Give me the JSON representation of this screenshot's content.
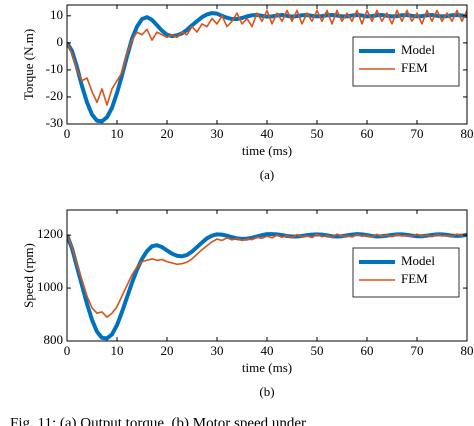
{
  "chart_data": [
    {
      "type": "line",
      "ylabel": "Torque (N.m)",
      "xlabel": "time (ms)",
      "panel_label": "(a)",
      "xlim": [
        0,
        80
      ],
      "xticks": [
        0,
        10,
        20,
        30,
        40,
        50,
        60,
        70,
        80
      ],
      "ylim": [
        -30,
        14
      ],
      "yticks": [
        -30,
        -20,
        -10,
        0,
        10
      ],
      "legend": "right",
      "x": [
        0,
        1,
        2,
        3,
        4,
        5,
        6,
        7,
        8,
        9,
        10,
        11,
        12,
        13,
        14,
        15,
        16,
        17,
        18,
        19,
        20,
        21,
        22,
        23,
        24,
        25,
        26,
        27,
        28,
        29,
        30,
        31,
        32,
        33,
        34,
        35,
        36,
        37,
        38,
        39,
        40,
        41,
        42,
        43,
        44,
        45,
        46,
        47,
        48,
        49,
        50,
        51,
        52,
        53,
        54,
        55,
        56,
        57,
        58,
        59,
        60,
        61,
        62,
        63,
        64,
        65,
        66,
        67,
        68,
        69,
        70,
        71,
        72,
        73,
        74,
        75,
        76,
        77,
        78,
        79,
        80
      ],
      "series": [
        {
          "name": "Model",
          "color": "#0072BD",
          "width": 4,
          "values": [
            0,
            -3,
            -9,
            -16,
            -22,
            -26.5,
            -28.8,
            -29,
            -27.5,
            -24,
            -18.5,
            -12,
            -5,
            1.5,
            6,
            8.8,
            9.5,
            8.5,
            6.5,
            4.5,
            3,
            2.5,
            2.8,
            3.5,
            4.8,
            6.5,
            8,
            9.5,
            10.5,
            11,
            10.8,
            10,
            9.3,
            8.8,
            8.8,
            9.2,
            9.8,
            10.2,
            10.3,
            10,
            9.7,
            9.8,
            10.1,
            10.3,
            10.0,
            9.7,
            9.9,
            10.2,
            10.3,
            10.0,
            9.8,
            9.9,
            10.2,
            10.3,
            10.1,
            9.8,
            9.8,
            10.1,
            10.3,
            10.1,
            9.8,
            9.9,
            10.2,
            10.3,
            10.0,
            9.8,
            9.9,
            10.2,
            10.3,
            10.0,
            9.8,
            9.9,
            10.2,
            10.3,
            10.0,
            9.8,
            9.9,
            10.2,
            10.3,
            10.1,
            9.9
          ]
        },
        {
          "name": "FEM",
          "color": "#D95319",
          "width": 1.6,
          "values": [
            0,
            -4,
            -10,
            -14,
            -13,
            -18,
            -22,
            -17,
            -23,
            -17,
            -14,
            -11,
            -4,
            1,
            4,
            3,
            5,
            1,
            4,
            3,
            2,
            3,
            2,
            4,
            3,
            6,
            4,
            7,
            6,
            9,
            7,
            10,
            6,
            8,
            11,
            7,
            9,
            6,
            11,
            8,
            12,
            7,
            11,
            8,
            12,
            8,
            12,
            7,
            11,
            8,
            12,
            8,
            12,
            7,
            12,
            8,
            11,
            8,
            12,
            7,
            12,
            8,
            12,
            8,
            11,
            7,
            12,
            8,
            12,
            8,
            11,
            7,
            12,
            8,
            12,
            8,
            11,
            8,
            12,
            8,
            12
          ]
        }
      ]
    },
    {
      "type": "line",
      "ylabel": "Speed (rpm)",
      "xlabel": "time (ms)",
      "panel_label": "(b)",
      "xlim": [
        0,
        80
      ],
      "xticks": [
        0,
        10,
        20,
        30,
        40,
        50,
        60,
        70,
        80
      ],
      "ylim": [
        800,
        1295
      ],
      "yticks": [
        800,
        1000,
        1200
      ],
      "legend": "right",
      "x": [
        0,
        1,
        2,
        3,
        4,
        5,
        6,
        7,
        8,
        9,
        10,
        11,
        12,
        13,
        14,
        15,
        16,
        17,
        18,
        19,
        20,
        21,
        22,
        23,
        24,
        25,
        26,
        27,
        28,
        29,
        30,
        31,
        32,
        33,
        34,
        35,
        36,
        37,
        38,
        39,
        40,
        41,
        42,
        43,
        44,
        45,
        46,
        47,
        48,
        49,
        50,
        51,
        52,
        53,
        54,
        55,
        56,
        57,
        58,
        59,
        60,
        61,
        62,
        63,
        64,
        65,
        66,
        67,
        68,
        69,
        70,
        71,
        72,
        73,
        74,
        75,
        76,
        77,
        78,
        79,
        80
      ],
      "series": [
        {
          "name": "Model",
          "color": "#0072BD",
          "width": 4,
          "values": [
            1200,
            1150,
            1080,
            1010,
            940,
            880,
            835,
            812,
            810,
            825,
            860,
            910,
            965,
            1020,
            1070,
            1110,
            1140,
            1158,
            1162,
            1155,
            1142,
            1130,
            1122,
            1120,
            1125,
            1138,
            1155,
            1172,
            1188,
            1198,
            1203,
            1202,
            1198,
            1192,
            1188,
            1186,
            1187,
            1190,
            1195,
            1200,
            1204,
            1204,
            1203,
            1200,
            1197,
            1195,
            1195,
            1197,
            1200,
            1202,
            1203,
            1202,
            1199,
            1196,
            1195,
            1196,
            1199,
            1202,
            1204,
            1203,
            1200,
            1197,
            1195,
            1196,
            1198,
            1201,
            1203,
            1203,
            1201,
            1198,
            1196,
            1196,
            1198,
            1201,
            1203,
            1203,
            1201,
            1198,
            1197,
            1198,
            1201
          ]
        },
        {
          "name": "FEM",
          "color": "#D95319",
          "width": 1.6,
          "values": [
            1200,
            1155,
            1090,
            1030,
            970,
            925,
            905,
            910,
            890,
            905,
            930,
            970,
            1010,
            1050,
            1080,
            1100,
            1105,
            1110,
            1105,
            1108,
            1100,
            1095,
            1090,
            1092,
            1098,
            1110,
            1128,
            1145,
            1160,
            1175,
            1185,
            1180,
            1190,
            1182,
            1188,
            1180,
            1186,
            1183,
            1192,
            1188,
            1196,
            1190,
            1200,
            1192,
            1198,
            1190,
            1202,
            1193,
            1197,
            1191,
            1203,
            1194,
            1199,
            1192,
            1204,
            1195,
            1198,
            1193,
            1202,
            1196,
            1199,
            1193,
            1203,
            1195,
            1200,
            1194,
            1202,
            1197,
            1199,
            1195,
            1204,
            1196,
            1200,
            1194,
            1203,
            1197,
            1199,
            1195,
            1204,
            1198,
            1202
          ]
        }
      ]
    }
  ],
  "caption": "Fig. 11: (a) Output torque, (b) Motor speed under"
}
